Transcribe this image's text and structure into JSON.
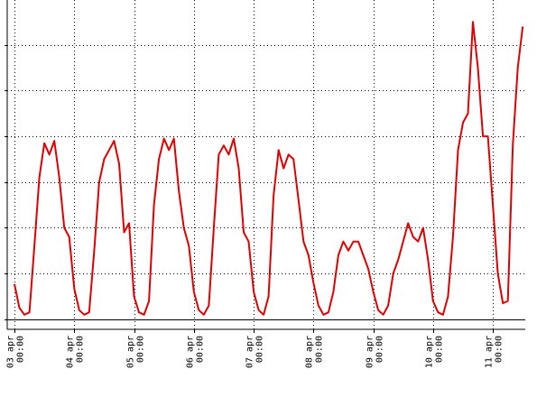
{
  "chart_data": {
    "type": "line",
    "x": [
      0,
      2,
      4,
      6,
      8,
      10,
      12,
      14,
      16,
      18,
      20,
      22,
      24,
      26,
      28,
      30,
      32,
      34,
      36,
      38,
      40,
      42,
      44,
      46,
      48,
      50,
      52,
      54,
      56,
      58,
      60,
      62,
      64,
      66,
      68,
      70,
      72,
      74,
      76,
      78,
      80,
      82,
      84,
      86,
      88,
      90,
      92,
      94,
      96,
      98,
      100,
      102,
      104,
      106,
      108,
      110,
      112,
      114,
      116,
      118,
      120,
      122,
      124,
      126,
      128,
      130,
      132,
      134,
      136,
      138,
      140,
      142,
      144,
      146,
      148,
      150,
      152,
      154,
      156,
      158,
      160,
      162,
      164,
      166,
      168,
      170,
      172,
      174,
      176,
      178,
      180,
      182,
      184,
      186,
      188,
      190,
      192,
      194,
      196,
      198,
      200,
      202,
      204
    ],
    "series": [
      {
        "color": "#e00000",
        "values": [
          0.77,
          0.25,
          0.1,
          0.15,
          1.6,
          3.1,
          3.85,
          3.6,
          3.9,
          3.1,
          2.0,
          1.8,
          0.67,
          0.2,
          0.1,
          0.15,
          1.5,
          3.0,
          3.5,
          3.7,
          3.9,
          3.4,
          1.9,
          2.1,
          0.5,
          0.15,
          0.1,
          0.4,
          2.5,
          3.5,
          3.95,
          3.7,
          3.95,
          2.8,
          2.0,
          1.6,
          0.6,
          0.2,
          0.1,
          0.3,
          2.0,
          3.6,
          3.8,
          3.6,
          3.95,
          3.3,
          1.9,
          1.7,
          0.6,
          0.2,
          0.1,
          0.5,
          2.7,
          3.7,
          3.3,
          3.6,
          3.5,
          2.6,
          1.7,
          1.4,
          0.8,
          0.3,
          0.1,
          0.15,
          0.6,
          1.4,
          1.7,
          1.5,
          1.7,
          1.7,
          1.4,
          1.1,
          0.6,
          0.2,
          0.1,
          0.3,
          1.0,
          1.3,
          1.7,
          2.1,
          1.8,
          1.7,
          2.0,
          1.3,
          0.4,
          0.15,
          0.1,
          0.5,
          1.8,
          3.7,
          4.3,
          4.5,
          6.5,
          5.5,
          4.0,
          4.0,
          2.5,
          1.0,
          0.35,
          0.4,
          3.8,
          5.5,
          6.4
        ]
      }
    ],
    "xlim": [
      0,
      205
    ],
    "xticks": [
      {
        "value": 0,
        "label": "03 apr 00:00"
      },
      {
        "value": 24,
        "label": "04 apr 00:00"
      },
      {
        "value": 48,
        "label": "05 apr 00:00"
      },
      {
        "value": 72,
        "label": "06 apr 00:00"
      },
      {
        "value": 96,
        "label": "07 apr 00:00"
      },
      {
        "value": 120,
        "label": "08 apr 00:00"
      },
      {
        "value": 144,
        "label": "09 apr 00:00"
      },
      {
        "value": 168,
        "label": "10 apr 00:00"
      },
      {
        "value": 192,
        "label": "11 apr 00:00"
      }
    ],
    "ylim": [
      -0.22,
      6.98
    ],
    "yticks": [
      0,
      1,
      2,
      3,
      4,
      5,
      6
    ],
    "grid": true
  }
}
